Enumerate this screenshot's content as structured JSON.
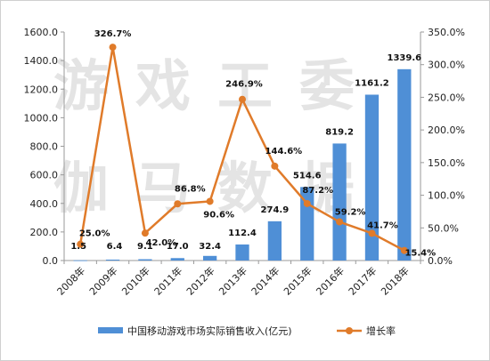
{
  "chart_data": {
    "type": "bar+line",
    "title": "",
    "categories": [
      "2008年",
      "2009年",
      "2010年",
      "2011年",
      "2012年",
      "2013年",
      "2014年",
      "2015年",
      "2016年",
      "2017年",
      "2018年"
    ],
    "series": [
      {
        "name": "中国移动游戏市场实际销售收入(亿元)",
        "type": "bar",
        "axis": "left",
        "values": [
          1.5,
          6.4,
          9.1,
          17.0,
          32.4,
          112.4,
          274.9,
          514.6,
          819.2,
          1161.2,
          1339.6
        ],
        "labels": [
          "1.5",
          "6.4",
          "9.1",
          "17.0",
          "32.4",
          "112.4",
          "274.9",
          "514.6",
          "819.2",
          "1161.2",
          "1339.6"
        ],
        "color": "#4f8fd6"
      },
      {
        "name": "增长率",
        "type": "line",
        "axis": "right",
        "values": [
          null,
          326.7,
          42.0,
          86.8,
          90.6,
          246.9,
          144.6,
          87.2,
          59.2,
          41.7,
          15.4
        ],
        "start_value": 25.0,
        "labels": [
          "25.0%",
          "326.7%",
          "42.0%",
          "86.8%",
          "90.6%",
          "246.9%",
          "144.6%",
          "87.2%",
          "59.2%",
          "41.7%",
          "15.4%"
        ],
        "color": "#e07b2a"
      }
    ],
    "y_left": {
      "min": 0,
      "max": 1600,
      "ticks": [
        "0.0",
        "200.0",
        "400.0",
        "600.0",
        "800.0",
        "1000.0",
        "1200.0",
        "1400.0",
        "1600.0"
      ]
    },
    "y_right": {
      "min": 0,
      "max": 350,
      "ticks": [
        "0.0%",
        "50.0%",
        "100.0%",
        "150.0%",
        "200.0%",
        "250.0%",
        "300.0%",
        "350.0%"
      ]
    },
    "grid": false,
    "legend": "bottom",
    "watermark": [
      "游戏工委",
      "伽马数据"
    ]
  }
}
